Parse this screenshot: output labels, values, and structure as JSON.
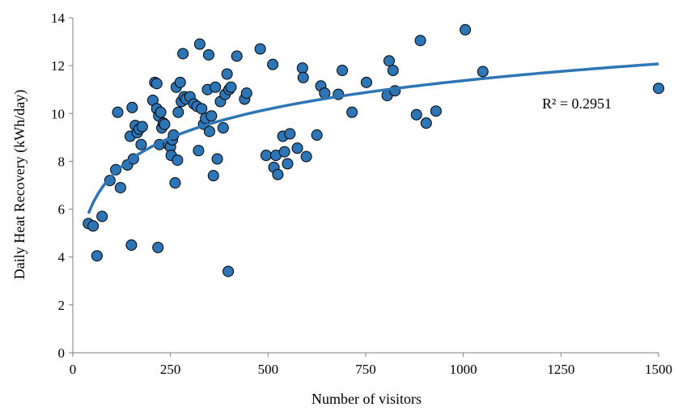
{
  "chart_data": {
    "type": "scatter",
    "title": "",
    "xlabel": "Number of visitors",
    "ylabel": "Daily Heat Recovery (kWh/day)",
    "xlim": [
      0,
      1500
    ],
    "ylim": [
      0,
      14
    ],
    "xticks": [
      0,
      250,
      500,
      750,
      1000,
      1250,
      1500
    ],
    "yticks": [
      0,
      2,
      4,
      6,
      8,
      10,
      12,
      14
    ],
    "grid": false,
    "legend": "none",
    "marker_color": "#2E75B6",
    "marker_edge": "#000000",
    "trendline": {
      "type": "logarithmic",
      "color": "#2E75B6",
      "a": 1.725,
      "b": -0.542,
      "x_from": 40,
      "x_to": 1500,
      "r2_text": "R² = 0.2951"
    },
    "series": [
      {
        "points": [
          [
            40,
            5.4
          ],
          [
            52,
            5.3
          ],
          [
            62,
            4.05
          ],
          [
            75,
            5.7
          ],
          [
            95,
            7.2
          ],
          [
            110,
            7.65
          ],
          [
            115,
            10.05
          ],
          [
            122,
            6.9
          ],
          [
            140,
            7.85
          ],
          [
            147,
            9.05
          ],
          [
            150,
            4.5
          ],
          [
            152,
            10.25
          ],
          [
            155,
            8.1
          ],
          [
            160,
            9.5
          ],
          [
            165,
            9.2
          ],
          [
            170,
            9.35
          ],
          [
            175,
            8.7
          ],
          [
            178,
            9.45
          ],
          [
            205,
            10.55
          ],
          [
            210,
            11.3
          ],
          [
            215,
            11.25
          ],
          [
            215,
            10.2
          ],
          [
            218,
            4.4
          ],
          [
            220,
            9.9
          ],
          [
            222,
            8.7
          ],
          [
            225,
            10.05
          ],
          [
            228,
            9.4
          ],
          [
            232,
            9.6
          ],
          [
            235,
            9.55
          ],
          [
            245,
            8.7
          ],
          [
            250,
            8.6
          ],
          [
            252,
            8.25
          ],
          [
            255,
            8.9
          ],
          [
            258,
            9.1
          ],
          [
            262,
            7.1
          ],
          [
            265,
            11.1
          ],
          [
            268,
            8.05
          ],
          [
            270,
            10.05
          ],
          [
            275,
            11.3
          ],
          [
            278,
            10.5
          ],
          [
            282,
            12.5
          ],
          [
            285,
            10.7
          ],
          [
            290,
            10.6
          ],
          [
            300,
            10.7
          ],
          [
            310,
            10.4
          ],
          [
            318,
            10.3
          ],
          [
            322,
            8.45
          ],
          [
            325,
            12.9
          ],
          [
            330,
            10.2
          ],
          [
            335,
            9.55
          ],
          [
            340,
            9.8
          ],
          [
            345,
            11.0
          ],
          [
            348,
            12.45
          ],
          [
            350,
            9.25
          ],
          [
            355,
            9.9
          ],
          [
            360,
            7.4
          ],
          [
            365,
            11.1
          ],
          [
            370,
            8.1
          ],
          [
            378,
            10.5
          ],
          [
            385,
            9.4
          ],
          [
            390,
            10.8
          ],
          [
            395,
            11.65
          ],
          [
            398,
            3.4
          ],
          [
            400,
            11.0
          ],
          [
            405,
            11.1
          ],
          [
            420,
            12.4
          ],
          [
            440,
            10.6
          ],
          [
            445,
            10.85
          ],
          [
            480,
            12.7
          ],
          [
            495,
            8.25
          ],
          [
            512,
            12.05
          ],
          [
            515,
            7.75
          ],
          [
            520,
            8.25
          ],
          [
            525,
            7.45
          ],
          [
            538,
            9.05
          ],
          [
            542,
            8.4
          ],
          [
            550,
            7.9
          ],
          [
            556,
            9.15
          ],
          [
            575,
            8.55
          ],
          [
            588,
            11.9
          ],
          [
            590,
            11.5
          ],
          [
            598,
            8.2
          ],
          [
            625,
            9.1
          ],
          [
            635,
            11.15
          ],
          [
            645,
            10.85
          ],
          [
            680,
            10.8
          ],
          [
            690,
            11.8
          ],
          [
            715,
            10.05
          ],
          [
            752,
            11.3
          ],
          [
            805,
            10.75
          ],
          [
            810,
            12.2
          ],
          [
            820,
            11.8
          ],
          [
            825,
            10.95
          ],
          [
            880,
            9.95
          ],
          [
            890,
            13.05
          ],
          [
            905,
            9.6
          ],
          [
            930,
            10.1
          ],
          [
            1005,
            13.5
          ],
          [
            1050,
            11.75
          ],
          [
            1500,
            11.05
          ]
        ]
      }
    ]
  }
}
